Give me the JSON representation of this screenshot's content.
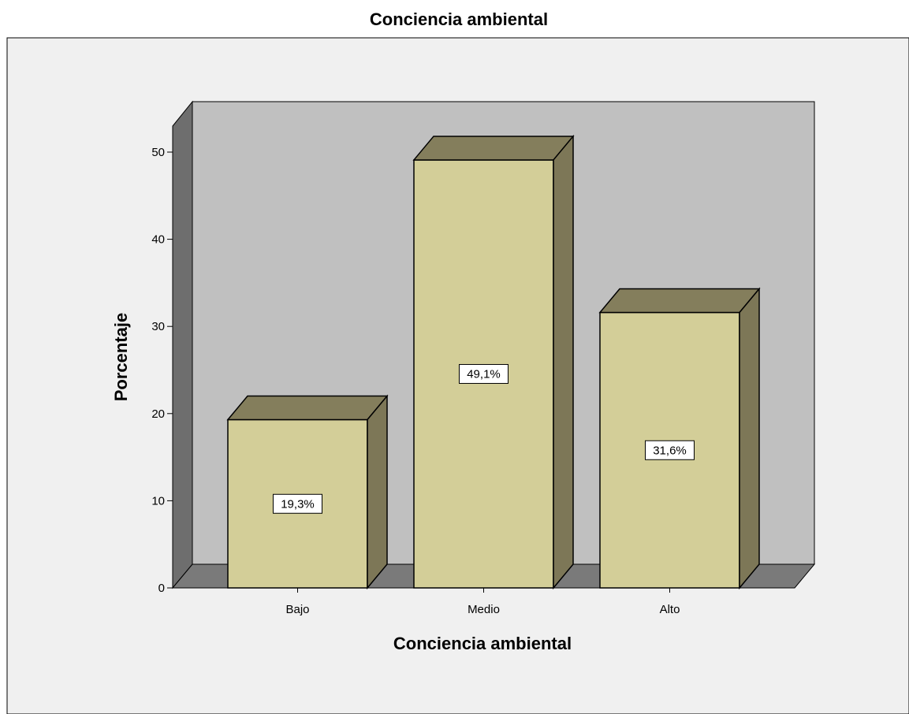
{
  "chart_data": {
    "type": "bar",
    "title": "Conciencia ambiental",
    "xlabel": "Conciencia ambiental",
    "ylabel": "Porcentaje",
    "categories": [
      "Bajo",
      "Medio",
      "Alto"
    ],
    "values": [
      19.3,
      49.1,
      31.6
    ],
    "data_labels": [
      "19,3%",
      "49,1%",
      "31,6%"
    ],
    "yticks": [
      "0",
      "10",
      "20",
      "30",
      "40",
      "50"
    ],
    "ytick_values": [
      0,
      10,
      20,
      30,
      40,
      50
    ],
    "ylim": [
      0,
      53
    ],
    "style": "3d",
    "grid": false,
    "legend": "none"
  },
  "colors": {
    "frame_background": "#f0f0f0",
    "plot_back_wall": "#c0c0c0",
    "plot_side_wall": "#6e6e6e",
    "plot_floor": "#7a7a7a",
    "bar_front": "#d3ce98",
    "bar_top": "#847e5c",
    "bar_side": "#7d7757",
    "outline": "#000000",
    "label_box": "#ffffff"
  }
}
